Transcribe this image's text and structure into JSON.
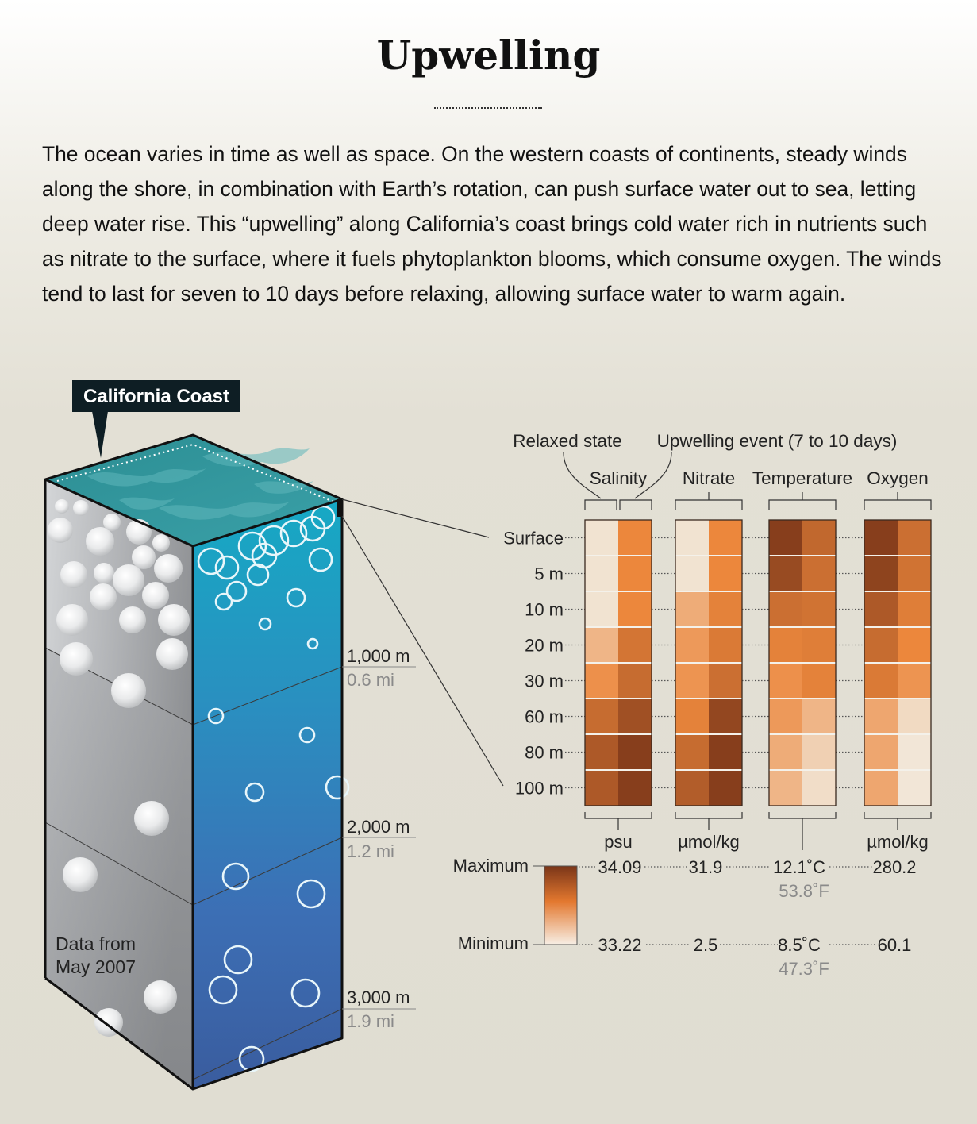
{
  "title": "Upwelling",
  "intro": "The ocean varies in time as well as space. On the western coasts of continents, steady winds along the shore, in combination with Earth’s rotation, can push surface water out to sea, letting deep water rise. This “upwelling” along California’s coast brings cold water rich in nutrients such as nitrate to the surface, where it fuels phytoplankton blooms, which consume oxygen. The winds tend to last for seven to 10 days before relaxing, allowing surface water to warm again.",
  "callout": "California Coast",
  "data_note_line1": "Data from",
  "data_note_line2": "May 2007",
  "depth_markers": [
    {
      "metric": "1,000 m",
      "imperial": "0.6 mi"
    },
    {
      "metric": "2,000 m",
      "imperial": "1.2 mi"
    },
    {
      "metric": "3,000 m",
      "imperial": "1.9 mi"
    }
  ],
  "state_labels": {
    "relaxed": "Relaxed state",
    "upwelling": "Upwelling event (7 to 10 days)"
  },
  "depth_rows": [
    "Surface",
    "5 m",
    "10 m",
    "20 m",
    "30 m",
    "60 m",
    "80 m",
    "100 m"
  ],
  "variables": [
    {
      "name": "Salinity",
      "unit": "psu",
      "max": "34.09",
      "max_alt": "",
      "min": "33.22",
      "min_alt": "",
      "relaxed": [
        0.05,
        0.05,
        0.05,
        0.3,
        0.5,
        0.7,
        0.8,
        0.8
      ],
      "upwelling": [
        0.55,
        0.55,
        0.55,
        0.65,
        0.7,
        0.85,
        0.95,
        0.95
      ]
    },
    {
      "name": "Nitrate",
      "unit": "µmol/kg",
      "max": "31.9",
      "max_alt": "",
      "min": "2.5",
      "min_alt": "",
      "relaxed": [
        0.05,
        0.05,
        0.35,
        0.45,
        0.48,
        0.58,
        0.7,
        0.78
      ],
      "upwelling": [
        0.55,
        0.55,
        0.58,
        0.62,
        0.68,
        0.9,
        0.95,
        0.95
      ]
    },
    {
      "name": "Temperature",
      "unit": "",
      "max": "12.1˚C",
      "max_alt": "53.8˚F",
      "min": "8.5˚C",
      "min_alt": "47.3˚F",
      "relaxed": [
        0.95,
        0.88,
        0.68,
        0.58,
        0.5,
        0.45,
        0.35,
        0.3
      ],
      "upwelling": [
        0.72,
        0.68,
        0.66,
        0.6,
        0.58,
        0.3,
        0.15,
        0.08
      ]
    },
    {
      "name": "Oxygen",
      "unit": "µmol/kg",
      "max": "280.2",
      "max_alt": "",
      "min": "60.1",
      "min_alt": "",
      "relaxed": [
        0.95,
        0.92,
        0.8,
        0.7,
        0.62,
        0.38,
        0.38,
        0.38
      ],
      "upwelling": [
        0.68,
        0.66,
        0.6,
        0.55,
        0.48,
        0.1,
        0.03,
        0.03
      ]
    }
  ],
  "legend": {
    "maximum": "Maximum",
    "minimum": "Minimum"
  },
  "colors": {
    "scale_min": "#f2ece0",
    "scale_mid": "#ec873c",
    "scale_max": "#7a3518",
    "water_top": "#2aa8b8",
    "water_deep": "#3a5fa8",
    "gray_side": "#9a9c9e"
  }
}
